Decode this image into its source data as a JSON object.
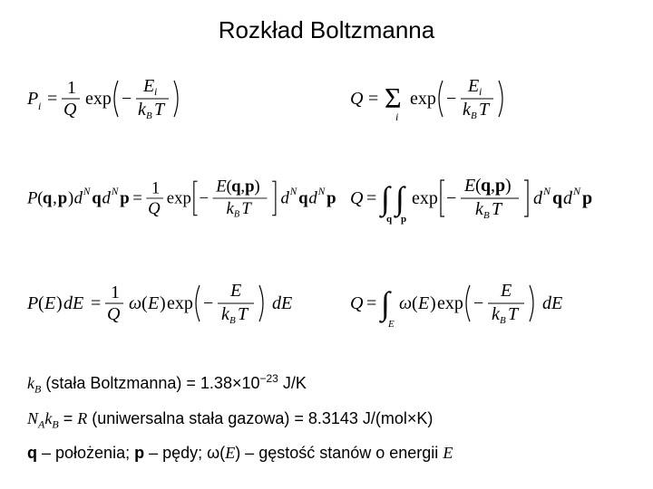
{
  "title": "Rozkład Boltzmanna",
  "colors": {
    "text": "#000000",
    "bg": "#ffffff"
  },
  "equations": {
    "Pi": "P_i = (1/Q) exp(-E_i / (k_B T))",
    "Q1": "Q = Σ_i exp(-E_i / (k_B T))",
    "Pqp": "P(q,p) d^N q d^N p = (1/Q) exp[-E(q,p)/(k_B T)] d^N q d^N p",
    "Q2": "Q = ∫_q ∫_p exp[-E(q,p)/(k_B T)] d^N q d^N p",
    "PE": "P(E) dE = (1/Q) ω(E) exp[-E/(k_B T)] dE",
    "Q3": "Q = ∫_E ω(E) exp[-E/(k_B T)] dE"
  },
  "defs": {
    "kB_html": "<span class='it'>k<sub>B</sub></span> (stała Boltzmanna) = 1.38×10<sup>−23</sup> J/K",
    "R_html": "<span class='it'>N<sub>A</sub>k<sub>B</sub></span> = <span class='it'>R</span> (uniwersalna stała gazowa) = 8.3143 J/(mol×K)",
    "symbols_html": "<span class='bold'>q</span> – położenia; <span class='bold'>p</span> – pędy; ω(<span class='it'>E</span>) – gęstość stanów o energii <span class='it'>E</span>"
  }
}
